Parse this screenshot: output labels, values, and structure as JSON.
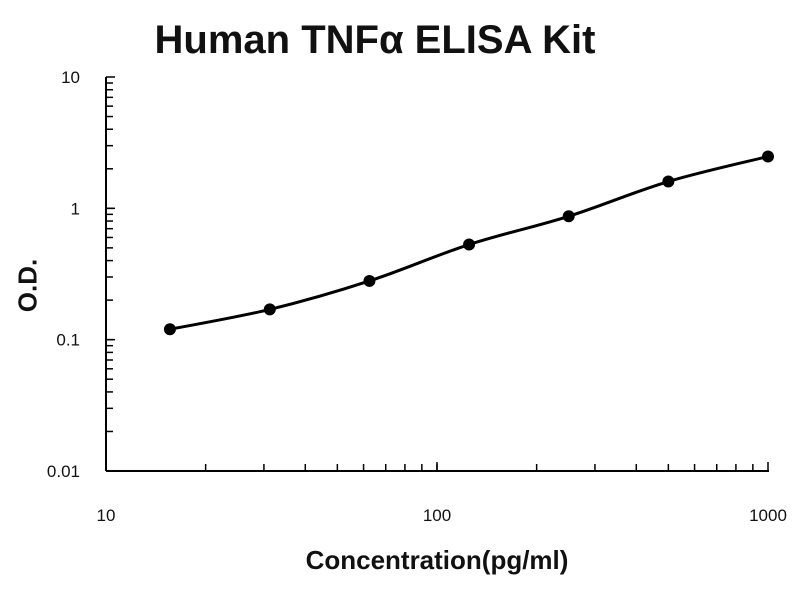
{
  "chart_data": {
    "type": "line",
    "title": "Human TNFα ELISA Kit",
    "xlabel": "Concentration(pg/ml)",
    "ylabel": "O.D.",
    "xscale": "log",
    "yscale": "log",
    "xlim": [
      10,
      1000
    ],
    "ylim": [
      0.01,
      10
    ],
    "x_ticks": [
      10,
      100,
      1000
    ],
    "x_tick_labels": [
      "10",
      "100",
      "1000"
    ],
    "y_ticks": [
      0.01,
      0.1,
      1,
      10
    ],
    "y_tick_labels": [
      "0.01",
      "0.1",
      "1",
      "10"
    ],
    "grid": false,
    "legend": "none",
    "markers": "filled circles",
    "line": "smooth fitted curve",
    "color": "#000000",
    "x": [
      15.6,
      31.25,
      62.5,
      125,
      250,
      500,
      1000
    ],
    "y": [
      0.12,
      0.17,
      0.28,
      0.53,
      0.87,
      1.6,
      2.48
    ]
  }
}
